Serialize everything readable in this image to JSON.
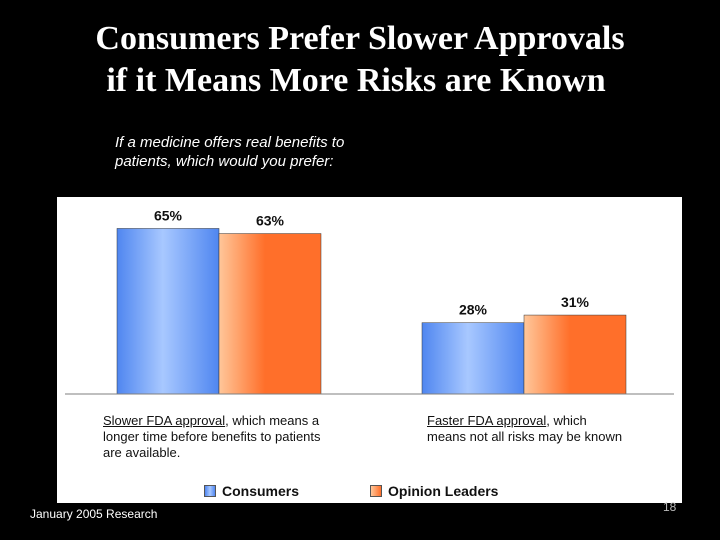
{
  "slide": {
    "title_line1": "Consumers Prefer Slower Approvals",
    "title_line2": "if it Means More Risks are Known",
    "question": "If a medicine offers real benefits to patients, which would you prefer:",
    "footer": "January 2005 Research",
    "page_number": "18"
  },
  "labels": {
    "cat1_underlined": "Slower FDA approval",
    "cat1_rest": ", which means a longer time before benefits to patients are available.",
    "cat2_underlined": "Faster FDA approval",
    "cat2_rest": ", which means not all risks may be known"
  },
  "colors": {
    "consumers": "#4f86f0",
    "consumers_light": "#a8c8ff",
    "opinion_leaders": "#ff6f2a",
    "opinion_leaders_light": "#ffc79a"
  },
  "chart_data": {
    "type": "bar",
    "categories": [
      "Slower FDA approval, which means a longer time before benefits to patients are available.",
      "Faster FDA approval, which means not all risks may be known"
    ],
    "series": [
      {
        "name": "Consumers",
        "values": [
          65,
          28
        ],
        "labels": [
          "65%",
          "28%"
        ]
      },
      {
        "name": "Opinion Leaders",
        "values": [
          63,
          31
        ],
        "labels": [
          "63%",
          "31%"
        ]
      }
    ],
    "ylim": [
      0,
      75
    ],
    "unit": "%",
    "legend_position": "bottom",
    "grid": false
  }
}
